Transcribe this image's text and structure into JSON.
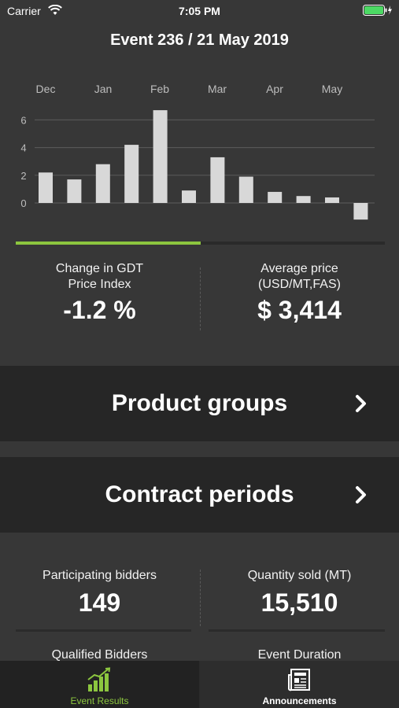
{
  "status_bar": {
    "carrier": "Carrier",
    "time": "7:05 PM"
  },
  "event_title": "Event 236 / 21 May 2019",
  "chart_data": {
    "type": "bar",
    "month_labels": [
      "Dec",
      "Jan",
      "Feb",
      "Mar",
      "Apr",
      "May"
    ],
    "values": [
      2.2,
      1.7,
      2.8,
      4.2,
      6.7,
      0.9,
      3.3,
      1.9,
      0.8,
      0.5,
      0.4,
      -1.2
    ],
    "y_ticks": [
      0,
      2,
      4,
      6
    ],
    "ylim": [
      -1.5,
      7
    ],
    "grid": true,
    "colors": {
      "bar": "#d8d8d8",
      "grid": "#5c5c5c",
      "axis_text": "#bdbdbd"
    }
  },
  "progress": {
    "value": 0.5,
    "color": "#8cc63f"
  },
  "gdt": {
    "label_line1": "Change in GDT",
    "label_line2": "Price Index",
    "value": "-1.2 %"
  },
  "avg_price": {
    "label_line1": "Average price",
    "label_line2": "(USD/MT,FAS)",
    "value": "$ 3,414"
  },
  "nav": {
    "product_groups": "Product groups",
    "contract_periods": "Contract periods"
  },
  "bidders": {
    "label": "Participating bidders",
    "value": "149"
  },
  "quantity": {
    "label": "Quantity sold (MT)",
    "value": "15,510"
  },
  "qualified": {
    "label": "Qualified Bidders"
  },
  "duration": {
    "label": "Event Duration"
  },
  "tabs": {
    "event_results": "Event Results",
    "announcements": "Announcements"
  }
}
